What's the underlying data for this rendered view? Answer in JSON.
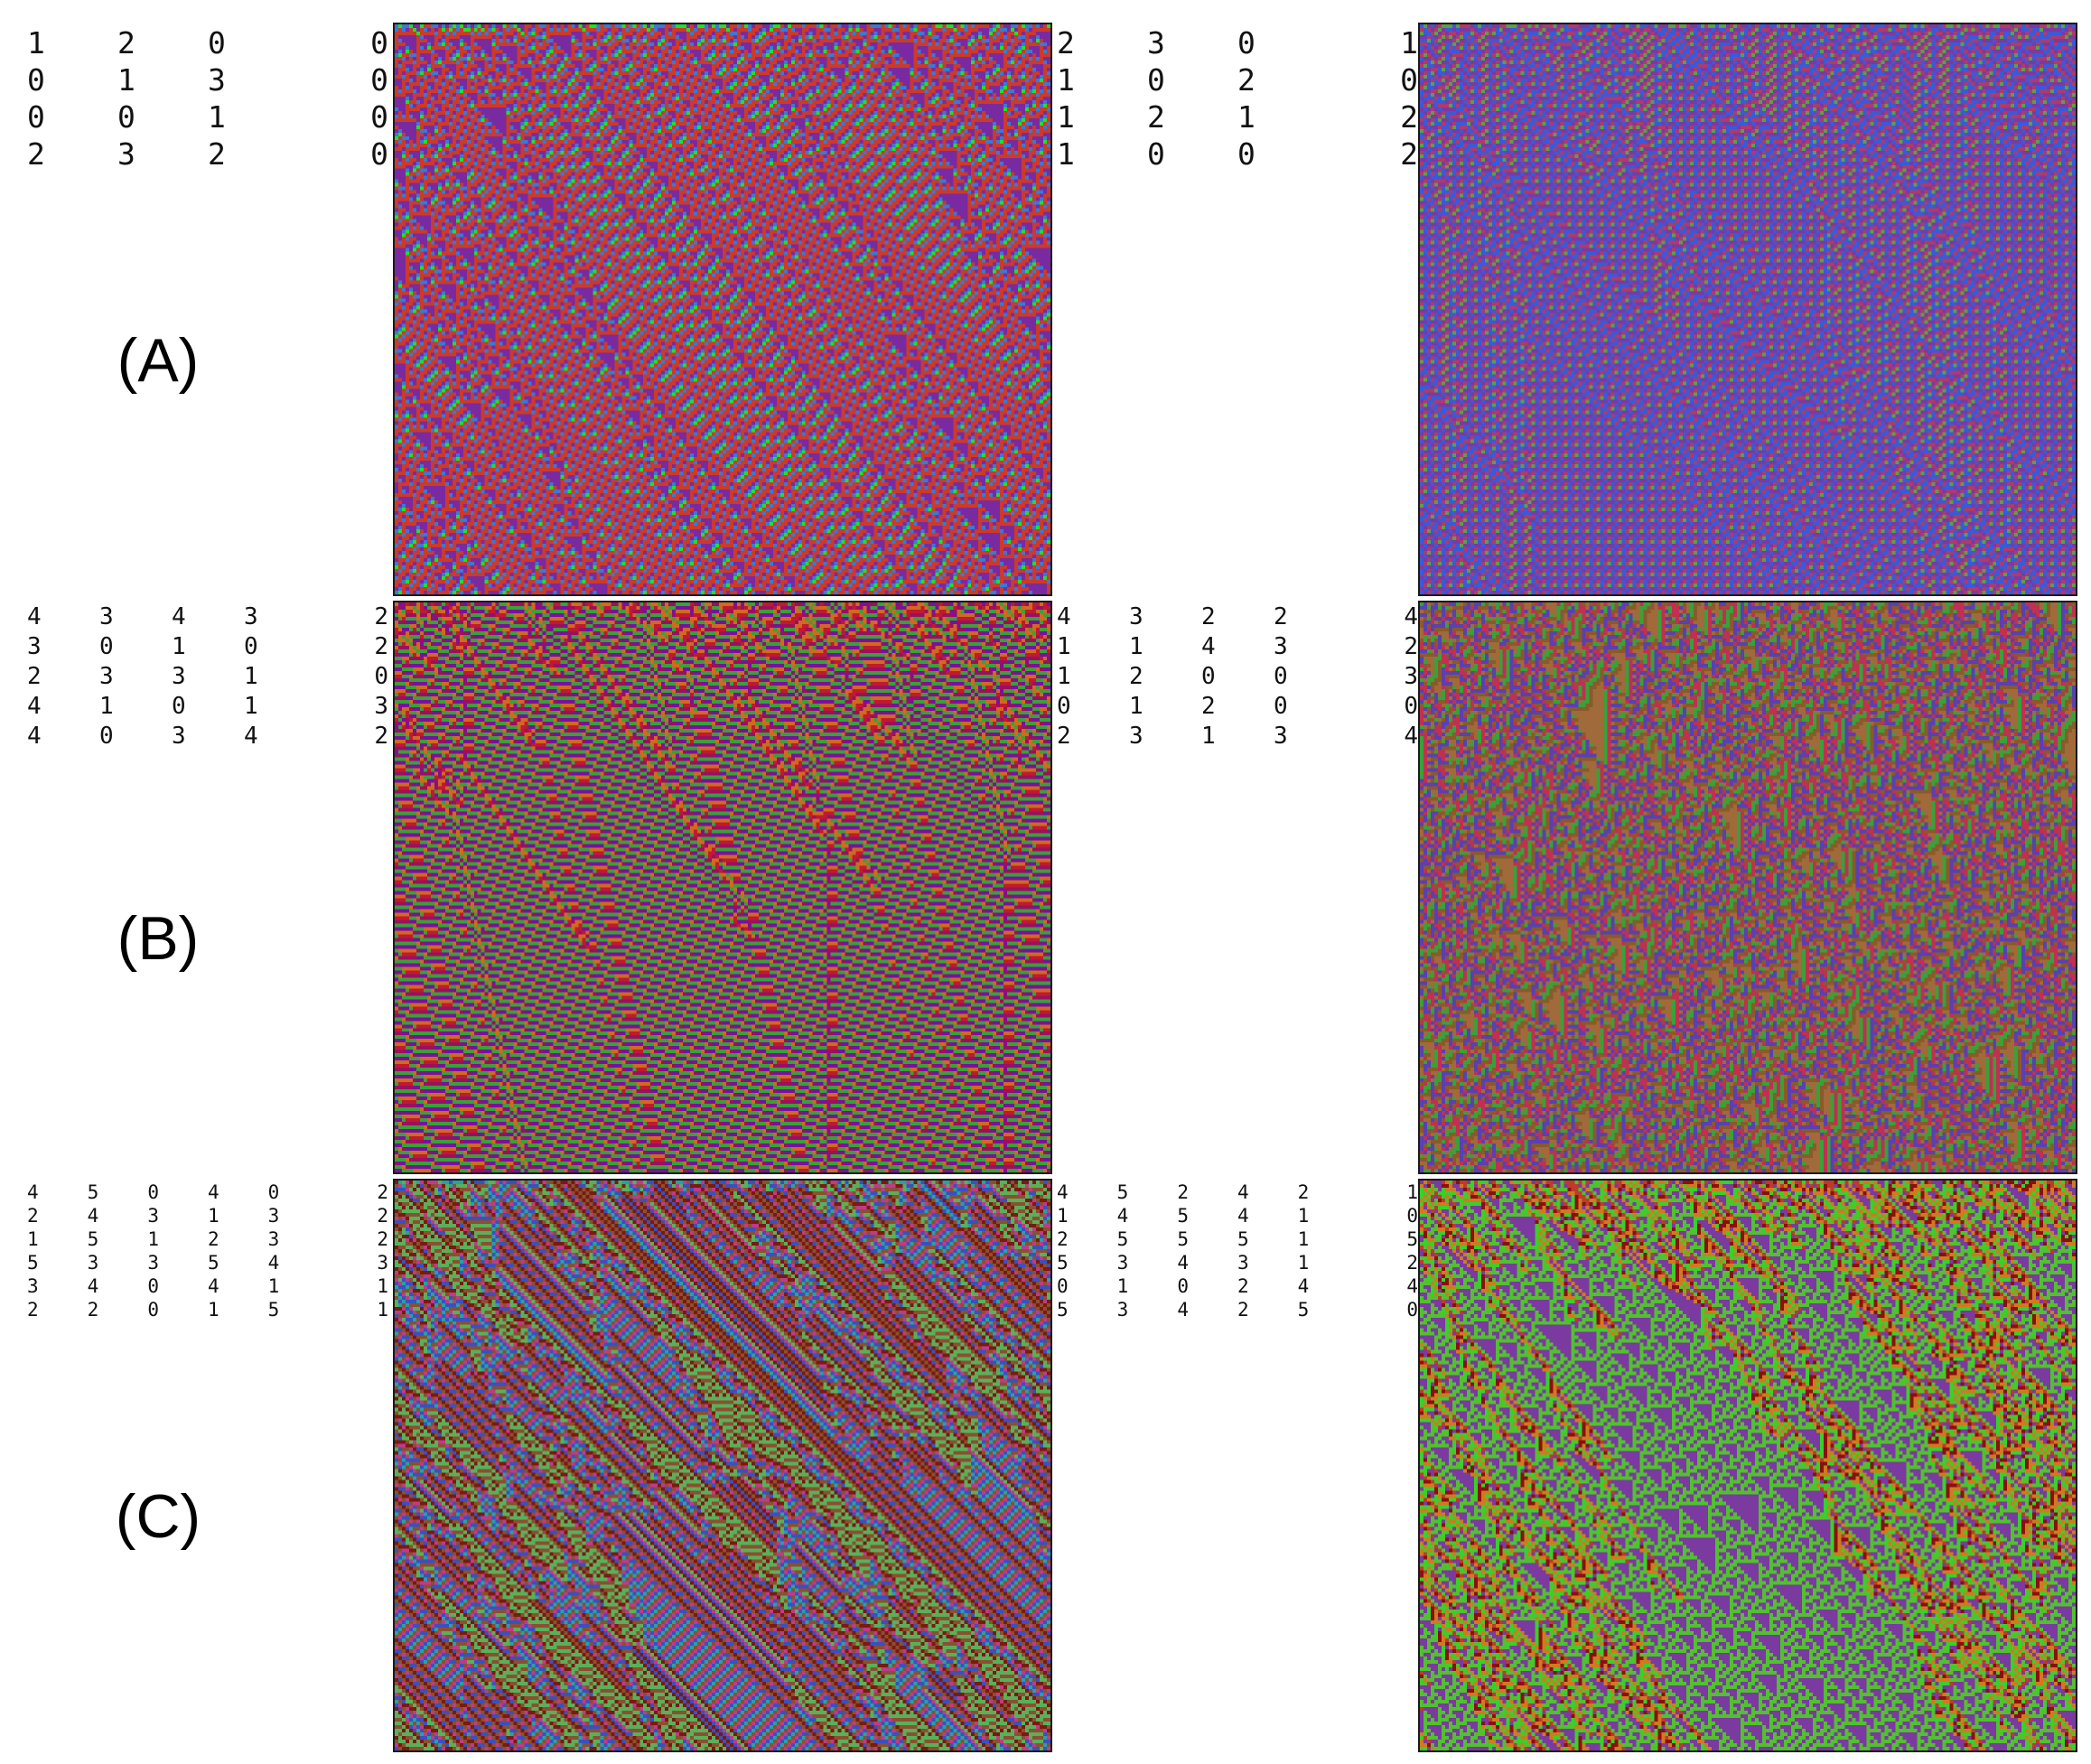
{
  "rows": [
    {
      "label": "(A)",
      "panels": [
        {
          "rule_table": [
            [
              "1",
              "2",
              "0",
              "0"
            ],
            [
              "0",
              "1",
              "3",
              "0"
            ],
            [
              "0",
              "0",
              "1",
              "0"
            ],
            [
              "2",
              "3",
              "2",
              "0"
            ]
          ],
          "palette": [
            "#cc3a2a",
            "#7a2aa0",
            "#3a7ad0",
            "#22e02a"
          ]
        },
        {
          "rule_table": [
            [
              "2",
              "3",
              "0",
              "1"
            ],
            [
              "1",
              "0",
              "2",
              "0"
            ],
            [
              "1",
              "2",
              "1",
              "2"
            ],
            [
              "1",
              "0",
              "0",
              "2"
            ]
          ],
          "palette": [
            "#7a3aa0",
            "#b03a6a",
            "#3a5ad8",
            "#5aa04a"
          ]
        }
      ]
    },
    {
      "label": "(B)",
      "panels": [
        {
          "rule_table": [
            [
              "4",
              "3",
              "4",
              "3",
              "2"
            ],
            [
              "3",
              "0",
              "1",
              "0",
              "2"
            ],
            [
              "2",
              "3",
              "3",
              "1",
              "0"
            ],
            [
              "4",
              "1",
              "0",
              "1",
              "3"
            ],
            [
              "4",
              "0",
              "3",
              "4",
              "2"
            ]
          ],
          "palette": [
            "#9a1060",
            "#c01a30",
            "#7a10a0",
            "#d06a20",
            "#3aa03a"
          ]
        },
        {
          "rule_table": [
            [
              "4",
              "3",
              "2",
              "2",
              "4"
            ],
            [
              "1",
              "1",
              "4",
              "3",
              "2"
            ],
            [
              "1",
              "2",
              "0",
              "0",
              "3"
            ],
            [
              "0",
              "1",
              "2",
              "0",
              "0"
            ],
            [
              "2",
              "3",
              "1",
              "3",
              "4"
            ]
          ],
          "palette": [
            "#8a5a2a",
            "#c03050",
            "#5a40b0",
            "#3aa03a",
            "#a06a3a"
          ]
        }
      ]
    },
    {
      "label": "(C)",
      "panels": [
        {
          "rule_table": [
            [
              "4",
              "5",
              "0",
              "4",
              "0",
              "2"
            ],
            [
              "2",
              "4",
              "3",
              "1",
              "3",
              "2"
            ],
            [
              "1",
              "5",
              "1",
              "2",
              "3",
              "2"
            ],
            [
              "5",
              "3",
              "3",
              "5",
              "4",
              "3"
            ],
            [
              "3",
              "4",
              "0",
              "4",
              "1",
              "1"
            ],
            [
              "2",
              "2",
              "0",
              "1",
              "5",
              "1"
            ]
          ],
          "palette": [
            "#2aa0a0",
            "#8a5030",
            "#3a50c0",
            "#7a1a10",
            "#5ab05a",
            "#c03a8a"
          ]
        },
        {
          "rule_table": [
            [
              "4",
              "5",
              "2",
              "4",
              "2",
              "1"
            ],
            [
              "1",
              "4",
              "5",
              "4",
              "1",
              "0"
            ],
            [
              "2",
              "5",
              "5",
              "5",
              "1",
              "5"
            ],
            [
              "5",
              "3",
              "4",
              "3",
              "1",
              "2"
            ],
            [
              "0",
              "1",
              "0",
              "2",
              "4",
              "4"
            ],
            [
              "5",
              "3",
              "4",
              "2",
              "5",
              "0"
            ]
          ],
          "palette": [
            "#3ad02a",
            "#52c030",
            "#8a1010",
            "#c03a2a",
            "#7a3aa0",
            "#d07a20"
          ]
        }
      ]
    }
  ]
}
